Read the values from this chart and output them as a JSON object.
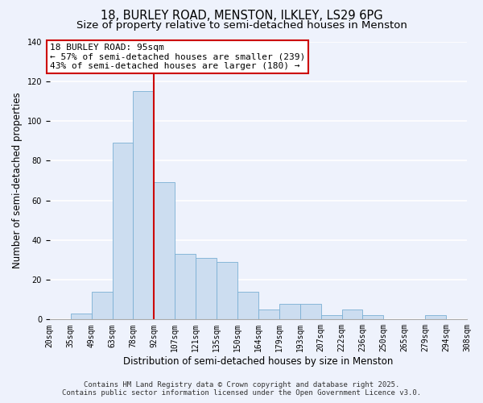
{
  "title": "18, BURLEY ROAD, MENSTON, ILKLEY, LS29 6PG",
  "subtitle": "Size of property relative to semi-detached houses in Menston",
  "xlabel": "Distribution of semi-detached houses by size in Menston",
  "ylabel": "Number of semi-detached properties",
  "bin_labels": [
    "20sqm",
    "35sqm",
    "49sqm",
    "63sqm",
    "78sqm",
    "92sqm",
    "107sqm",
    "121sqm",
    "135sqm",
    "150sqm",
    "164sqm",
    "179sqm",
    "193sqm",
    "207sqm",
    "222sqm",
    "236sqm",
    "250sqm",
    "265sqm",
    "279sqm",
    "294sqm",
    "308sqm"
  ],
  "bar_heights": [
    0,
    3,
    14,
    89,
    115,
    69,
    33,
    31,
    29,
    14,
    5,
    8,
    8,
    2,
    5,
    2,
    0,
    0,
    2,
    0
  ],
  "bar_color": "#ccddf0",
  "bar_edge_color": "#7aafd4",
  "ylim": [
    0,
    140
  ],
  "yticks": [
    0,
    20,
    40,
    60,
    80,
    100,
    120,
    140
  ],
  "vline_x_index": 5,
  "vline_color": "#cc0000",
  "annotation_title": "18 BURLEY ROAD: 95sqm",
  "annotation_line2": "← 57% of semi-detached houses are smaller (239)",
  "annotation_line3": "43% of semi-detached houses are larger (180) →",
  "annotation_box_color": "#ffffff",
  "annotation_box_edge": "#cc0000",
  "footer_line1": "Contains HM Land Registry data © Crown copyright and database right 2025.",
  "footer_line2": "Contains public sector information licensed under the Open Government Licence v3.0.",
  "bg_color": "#eef2fc",
  "grid_color": "#ffffff",
  "title_fontsize": 10.5,
  "subtitle_fontsize": 9.5,
  "xlabel_fontsize": 8.5,
  "ylabel_fontsize": 8.5,
  "tick_fontsize": 7,
  "footer_fontsize": 6.5,
  "annotation_fontsize": 8
}
